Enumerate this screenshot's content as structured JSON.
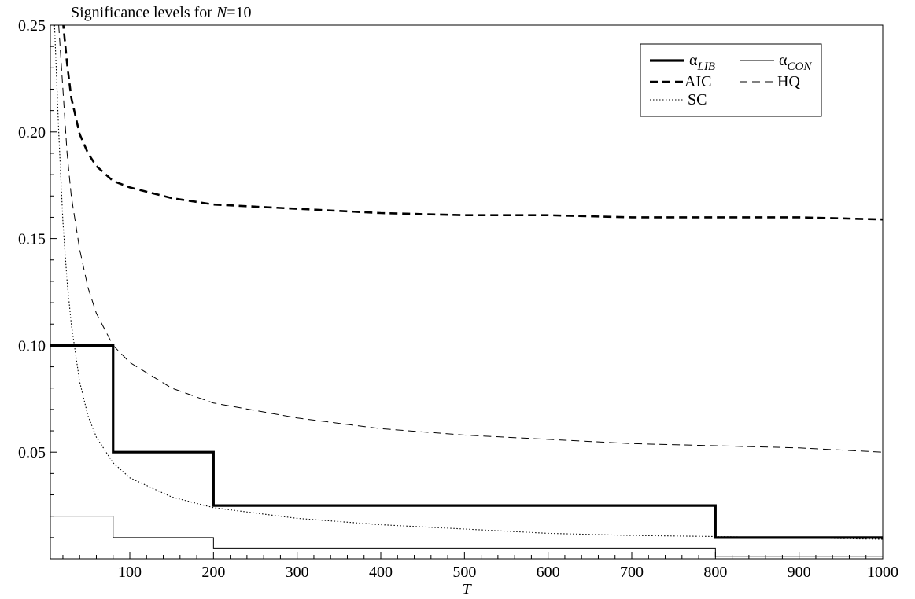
{
  "chart_data": {
    "type": "line",
    "title_prefix": "Significance levels for ",
    "title_var": "N",
    "title_suffix": "=10",
    "xlabel": "T",
    "ylabel": "",
    "xlim": [
      5,
      1000
    ],
    "ylim": [
      0.0,
      0.25
    ],
    "grid": false,
    "legend_position": "top-right",
    "x_ticks": [
      100,
      200,
      300,
      400,
      500,
      600,
      700,
      800,
      900,
      1000
    ],
    "x_tick_labels": [
      "100",
      "200",
      "300",
      "400",
      "500",
      "600",
      "700",
      "800",
      "900",
      "1000"
    ],
    "y_ticks": [
      0.05,
      0.1,
      0.15,
      0.2,
      0.25
    ],
    "y_tick_labels": [
      "0.05",
      "0.10",
      "0.15",
      "0.20",
      "0.25"
    ],
    "legend": [
      {
        "key": "lib",
        "symbol": "α",
        "subscript": "LIB"
      },
      {
        "key": "con",
        "symbol": "α",
        "subscript": "CON"
      },
      {
        "key": "aic",
        "label": "AIC"
      },
      {
        "key": "hq",
        "label": "HQ"
      },
      {
        "key": "sc",
        "label": "SC"
      }
    ],
    "series": [
      {
        "key": "lib",
        "name": "αLIB",
        "kind": "step",
        "style": "thick-solid",
        "x": [
          5,
          80,
          80,
          200,
          200,
          800,
          800,
          1000
        ],
        "y": [
          0.1,
          0.1,
          0.05,
          0.05,
          0.025,
          0.025,
          0.01,
          0.01
        ]
      },
      {
        "key": "con",
        "name": "αCON",
        "kind": "step",
        "style": "thin-solid",
        "x": [
          5,
          80,
          80,
          200,
          200,
          800,
          800,
          1000
        ],
        "y": [
          0.02,
          0.02,
          0.01,
          0.01,
          0.005,
          0.005,
          0.001,
          0.001
        ]
      },
      {
        "key": "aic",
        "name": "AIC",
        "kind": "curve",
        "style": "thick-dash",
        "x": [
          20,
          25,
          30,
          40,
          50,
          60,
          80,
          100,
          150,
          200,
          300,
          400,
          500,
          600,
          700,
          800,
          900,
          1000
        ],
        "y": [
          0.252,
          0.232,
          0.216,
          0.199,
          0.19,
          0.184,
          0.177,
          0.174,
          0.169,
          0.166,
          0.164,
          0.162,
          0.161,
          0.161,
          0.16,
          0.16,
          0.16,
          0.159
        ]
      },
      {
        "key": "hq",
        "name": "HQ",
        "kind": "curve",
        "style": "thin-dash",
        "x": [
          15,
          20,
          25,
          30,
          40,
          50,
          60,
          80,
          100,
          150,
          200,
          300,
          400,
          500,
          600,
          700,
          800,
          900,
          1000
        ],
        "y": [
          0.25,
          0.22,
          0.19,
          0.17,
          0.145,
          0.127,
          0.115,
          0.1,
          0.092,
          0.08,
          0.073,
          0.066,
          0.061,
          0.058,
          0.056,
          0.054,
          0.053,
          0.052,
          0.05
        ]
      },
      {
        "key": "sc",
        "name": "SC",
        "kind": "curve",
        "style": "dotted",
        "x": [
          10,
          15,
          20,
          25,
          30,
          40,
          50,
          60,
          80,
          100,
          150,
          200,
          300,
          400,
          500,
          600,
          700,
          800,
          900,
          1000
        ],
        "y": [
          0.25,
          0.2,
          0.158,
          0.13,
          0.11,
          0.083,
          0.067,
          0.057,
          0.045,
          0.038,
          0.029,
          0.024,
          0.019,
          0.016,
          0.014,
          0.012,
          0.011,
          0.0105,
          0.0098,
          0.0092
        ]
      }
    ]
  }
}
